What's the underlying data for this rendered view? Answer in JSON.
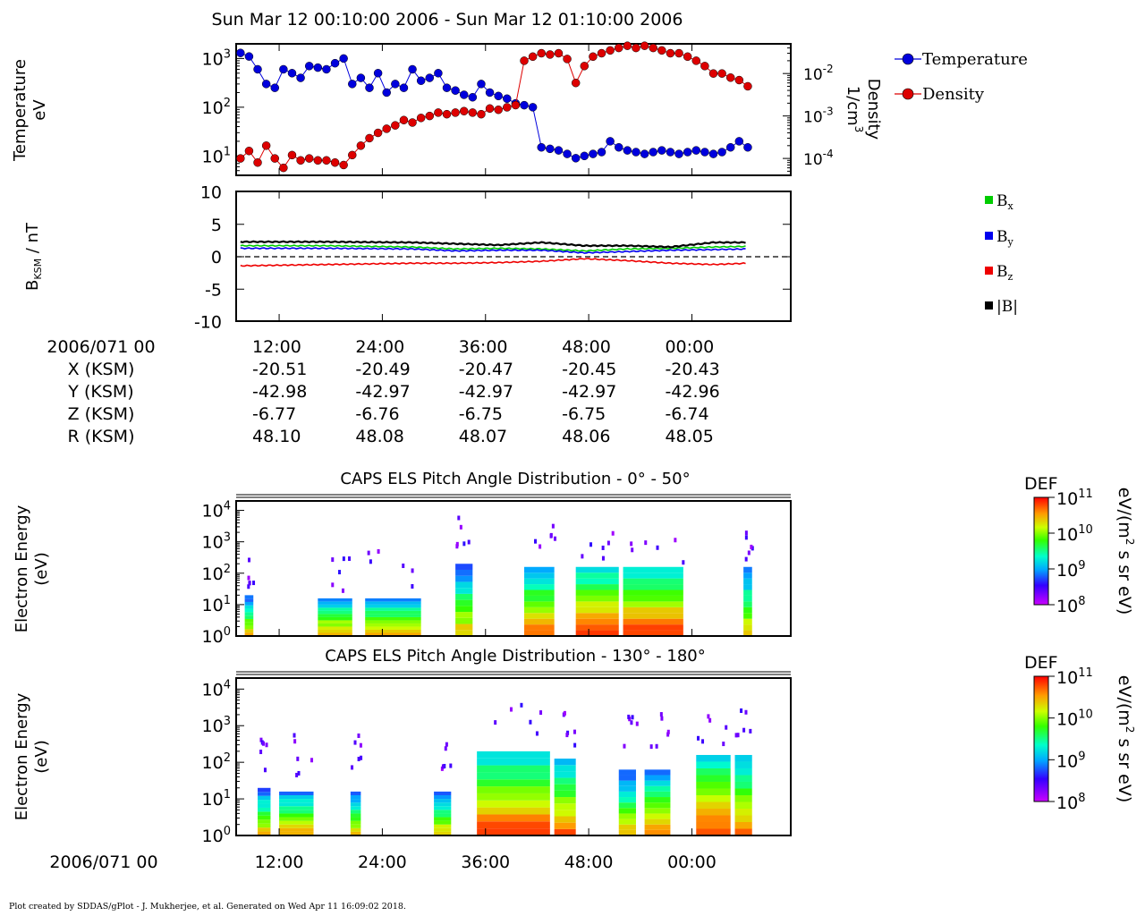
{
  "title": "Sun Mar 12 00:10:00 2006 - Sun Mar 12 01:10:00 2006",
  "footer": "Plot created by SDDAS/gPlot - J. Mukherjee, et al.  Generated on Wed Apr 11 16:09:02 2018.",
  "time_ticks": [
    "12:00",
    "24:00",
    "36:00",
    "48:00",
    "00:00"
  ],
  "colors": {
    "temperature": "#0000dd",
    "density": "#dd0000",
    "bx": "#00cc00",
    "by": "#0000ee",
    "bz": "#ee0000",
    "btot": "#000000"
  },
  "panel_temp": {
    "ylabel_line1": "Temperature",
    "ylabel_line2": "eV",
    "y2label_line1": "Density",
    "y2label_line2": "1/cm",
    "y2label_sup": "3",
    "yticks": [
      {
        "b": "10",
        "e": "3"
      },
      {
        "b": "10",
        "e": "2"
      },
      {
        "b": "10",
        "e": "1"
      }
    ],
    "y2ticks": [
      {
        "b": "10",
        "e": "-2"
      },
      {
        "b": "10",
        "e": "-3"
      },
      {
        "b": "10",
        "e": "-4"
      }
    ],
    "legend": [
      {
        "name": "Temperature",
        "color": "#0000dd"
      },
      {
        "name": "Density",
        "color": "#dd0000"
      }
    ]
  },
  "panel_mag": {
    "ylabel_main": "B",
    "ylabel_sub": "KSM",
    "ylabel_unit": " / nT",
    "yticks": [
      "10",
      "5",
      "0",
      "-5",
      "-10"
    ],
    "legend": [
      {
        "b": "B",
        "s": "x",
        "color": "#00cc00"
      },
      {
        "b": "B",
        "s": "y",
        "color": "#0000ee"
      },
      {
        "b": "B",
        "s": "z",
        "color": "#ee0000"
      },
      {
        "b": "|B|",
        "s": "",
        "color": "#000000"
      }
    ]
  },
  "ephemeris": {
    "date_label": "2006/071 00",
    "rows": [
      {
        "label": "X (KSM)",
        "values": [
          "-20.51",
          "-20.49",
          "-20.47",
          "-20.45",
          "-20.43"
        ]
      },
      {
        "label": "Y (KSM)",
        "values": [
          "-42.98",
          "-42.97",
          "-42.97",
          "-42.97",
          "-42.96"
        ]
      },
      {
        "label": "Z (KSM)",
        "values": [
          "-6.77",
          "-6.76",
          "-6.75",
          "-6.75",
          "-6.74"
        ]
      },
      {
        "label": "R (KSM)",
        "values": [
          "48.10",
          "48.08",
          "48.07",
          "48.06",
          "48.05"
        ]
      }
    ]
  },
  "spec1": {
    "title": "CAPS ELS Pitch Angle Distribution - 0° - 50°",
    "ylabel_line1": "Electron Energy",
    "ylabel_line2": "(eV)",
    "yticks": [
      {
        "b": "10",
        "e": "4"
      },
      {
        "b": "10",
        "e": "3"
      },
      {
        "b": "10",
        "e": "2"
      },
      {
        "b": "10",
        "e": "1"
      },
      {
        "b": "10",
        "e": "0"
      }
    ]
  },
  "spec2": {
    "title": "CAPS ELS Pitch Angle Distribution - 130° - 180°",
    "ylabel_line1": "Electron Energy",
    "ylabel_line2": "(eV)",
    "yticks": [
      {
        "b": "10",
        "e": "4"
      },
      {
        "b": "10",
        "e": "3"
      },
      {
        "b": "10",
        "e": "2"
      },
      {
        "b": "10",
        "e": "1"
      },
      {
        "b": "10",
        "e": "0"
      }
    ]
  },
  "colorbar": {
    "label": "DEF",
    "unit_pre": "eV/(m",
    "unit_sup": "2",
    "unit_post": " s sr eV)",
    "ticks": [
      {
        "b": "10",
        "e": "11"
      },
      {
        "b": "10",
        "e": "10"
      },
      {
        "b": "10",
        "e": "9"
      },
      {
        "b": "10",
        "e": "8"
      }
    ]
  },
  "bottom_axis": {
    "date_label": "2006/071 00"
  },
  "chart_data": [
    {
      "type": "line",
      "title": "",
      "xlabel": "",
      "ylabel": "Temperature eV",
      "y2label": "Density 1/cm3",
      "yscale": "log",
      "ylim": [
        4,
        2000
      ],
      "y2lim": [
        4e-05,
        0.05
      ],
      "legend_placement": "right",
      "grid": false,
      "series": [
        {
          "name": "Temperature",
          "axis": "left",
          "x_minutes": [
            0,
            1,
            2,
            3,
            4,
            5,
            6,
            7,
            8,
            9,
            10,
            11,
            12,
            13,
            14,
            15,
            16,
            17,
            18,
            19,
            20,
            21,
            22,
            23,
            24,
            25,
            26,
            27,
            28,
            29,
            30,
            31,
            32,
            33,
            34,
            35,
            36,
            37,
            38,
            39,
            40,
            41,
            42,
            43,
            44,
            45,
            46,
            47,
            48,
            49,
            50,
            51,
            52,
            53,
            54,
            55,
            56,
            57,
            58,
            59
          ],
          "values": [
            1300,
            1100,
            600,
            300,
            250,
            600,
            500,
            400,
            700,
            650,
            600,
            800,
            1000,
            300,
            400,
            250,
            500,
            200,
            300,
            250,
            600,
            350,
            400,
            500,
            250,
            220,
            180,
            160,
            300,
            200,
            170,
            150,
            120,
            110,
            100,
            15,
            14,
            13,
            11,
            9,
            10,
            11,
            12,
            20,
            15,
            13,
            12,
            11,
            12,
            13,
            12,
            11,
            12,
            13,
            12,
            11,
            12,
            15,
            20,
            15
          ]
        },
        {
          "name": "Density",
          "axis": "right",
          "x_minutes": [
            0,
            1,
            2,
            3,
            4,
            5,
            6,
            7,
            8,
            9,
            10,
            11,
            12,
            13,
            14,
            15,
            16,
            17,
            18,
            19,
            20,
            21,
            22,
            23,
            24,
            25,
            26,
            27,
            28,
            29,
            30,
            31,
            32,
            33,
            34,
            35,
            36,
            37,
            38,
            39,
            40,
            41,
            42,
            43,
            44,
            45,
            46,
            47,
            48,
            49,
            50,
            51,
            52,
            53,
            54,
            55,
            56,
            57,
            58,
            59
          ],
          "values": [
            0.0001,
            0.00015,
            8e-05,
            0.0002,
            0.0001,
            6e-05,
            0.00012,
            9e-05,
            0.0001,
            9e-05,
            9e-05,
            8e-05,
            7e-05,
            0.00012,
            0.0002,
            0.0003,
            0.0004,
            0.0005,
            0.0006,
            0.0008,
            0.0007,
            0.0009,
            0.001,
            0.0012,
            0.0011,
            0.0012,
            0.0013,
            0.0012,
            0.0011,
            0.0015,
            0.0014,
            0.0016,
            0.0018,
            0.02,
            0.025,
            0.03,
            0.028,
            0.03,
            0.022,
            0.006,
            0.015,
            0.025,
            0.03,
            0.035,
            0.04,
            0.045,
            0.04,
            0.045,
            0.04,
            0.035,
            0.03,
            0.03,
            0.025,
            0.02,
            0.015,
            0.01,
            0.01,
            0.008,
            0.007,
            0.005
          ]
        }
      ]
    },
    {
      "type": "line",
      "title": "",
      "xlabel": "",
      "ylabel": "BKSM / nT",
      "ylim": [
        -10,
        10
      ],
      "grid": false,
      "series": [
        {
          "name": "Bx",
          "x_minutes": [
            0,
            10,
            20,
            25,
            30,
            35,
            40,
            45,
            50,
            55,
            59
          ],
          "values": [
            1.7,
            1.7,
            1.5,
            1.2,
            1.3,
            1.2,
            0.9,
            1.2,
            1.3,
            1.5,
            1.6
          ]
        },
        {
          "name": "By",
          "x_minutes": [
            0,
            10,
            20,
            25,
            30,
            35,
            40,
            45,
            50,
            55,
            59
          ],
          "values": [
            1.3,
            1.3,
            1.2,
            0.9,
            1.0,
            1.0,
            0.6,
            0.8,
            1.0,
            1.1,
            1.2
          ]
        },
        {
          "name": "Bz",
          "x_minutes": [
            0,
            10,
            20,
            25,
            30,
            35,
            40,
            45,
            50,
            55,
            59
          ],
          "values": [
            -1.4,
            -1.2,
            -1.0,
            -1.0,
            -0.9,
            -0.7,
            -0.3,
            -0.6,
            -1.0,
            -1.2,
            -1.0
          ]
        },
        {
          "name": "|B|",
          "x_minutes": [
            0,
            10,
            20,
            25,
            30,
            35,
            40,
            45,
            50,
            55,
            59
          ],
          "values": [
            2.3,
            2.3,
            2.2,
            2.0,
            1.8,
            2.2,
            1.7,
            1.7,
            1.5,
            2.2,
            2.2
          ]
        }
      ]
    },
    {
      "type": "heatmap",
      "title": "CAPS ELS Pitch Angle Distribution - 0° - 50°",
      "ylabel": "Electron Energy (eV)",
      "yscale": "log",
      "ylim": [
        1,
        20000
      ],
      "colorbar_label": "DEF eV/(m2 s sr eV)",
      "colorbar_range": [
        100000000.0,
        100000000000.0
      ],
      "blocks": [
        {
          "x": [
            0.5,
            1.5
          ],
          "log_e_top": 1.3,
          "level": 0.45
        },
        {
          "x": [
            9,
            13
          ],
          "log_e_top": 1.2,
          "level": 0.5
        },
        {
          "x": [
            14.5,
            21
          ],
          "log_e_top": 1.2,
          "level": 0.5
        },
        {
          "x": [
            25,
            27
          ],
          "log_e_top": 2.3,
          "level": 0.45
        },
        {
          "x": [
            33,
            36.5
          ],
          "log_e_top": 2.2,
          "level": 0.55
        },
        {
          "x": [
            39,
            44
          ],
          "log_e_top": 2.2,
          "level": 0.6
        },
        {
          "x": [
            44.5,
            51.5
          ],
          "log_e_top": 2.2,
          "level": 0.6
        },
        {
          "x": [
            58.5,
            59.5
          ],
          "log_e_top": 2.2,
          "level": 0.45
        }
      ]
    },
    {
      "type": "heatmap",
      "title": "CAPS ELS Pitch Angle Distribution - 130° - 180°",
      "ylabel": "Electron Energy (eV)",
      "yscale": "log",
      "ylim": [
        1,
        20000
      ],
      "colorbar_label": "DEF eV/(m2 s sr eV)",
      "colorbar_range": [
        100000000.0,
        100000000000.0
      ],
      "blocks": [
        {
          "x": [
            2,
            3.5
          ],
          "log_e_top": 1.3,
          "level": 0.45
        },
        {
          "x": [
            4.5,
            8.5
          ],
          "log_e_top": 1.2,
          "level": 0.5
        },
        {
          "x": [
            12.8,
            14
          ],
          "log_e_top": 1.2,
          "level": 0.45
        },
        {
          "x": [
            22.5,
            24.5
          ],
          "log_e_top": 1.2,
          "level": 0.45
        },
        {
          "x": [
            27.5,
            36
          ],
          "log_e_top": 2.3,
          "level": 0.6
        },
        {
          "x": [
            36.5,
            39
          ],
          "log_e_top": 2.1,
          "level": 0.55
        },
        {
          "x": [
            44,
            46
          ],
          "log_e_top": 1.8,
          "level": 0.45
        },
        {
          "x": [
            47,
            50
          ],
          "log_e_top": 1.8,
          "level": 0.5
        },
        {
          "x": [
            53,
            57
          ],
          "log_e_top": 2.2,
          "level": 0.6
        },
        {
          "x": [
            57.5,
            59.5
          ],
          "log_e_top": 2.2,
          "level": 0.55
        }
      ]
    }
  ]
}
